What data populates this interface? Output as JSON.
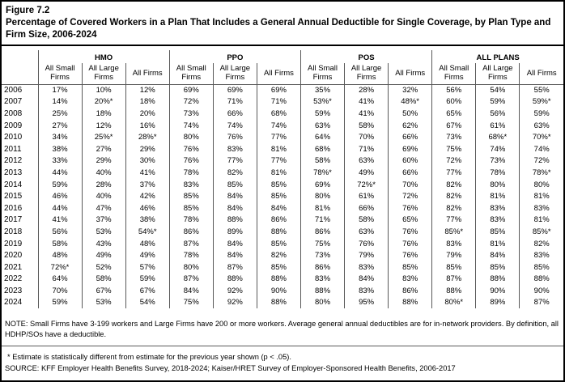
{
  "figure": {
    "label": "Figure 7.2",
    "title": "Percentage of Covered Workers in a Plan That Includes a General Annual Deductible for Single Coverage, by Plan Type and Firm Size, 2006-2024"
  },
  "table": {
    "groups": [
      "HMO",
      "PPO",
      "POS",
      "ALL PLANS"
    ],
    "sub_headers": [
      "All Small Firms",
      "All Large Firms",
      "All Firms"
    ],
    "rows": [
      {
        "year": "2006",
        "values": [
          "17%",
          "10%",
          "12%",
          "69%",
          "69%",
          "69%",
          "35%",
          "28%",
          "32%",
          "56%",
          "54%",
          "55%"
        ]
      },
      {
        "year": "2007",
        "values": [
          "14%",
          "20%*",
          "18%",
          "72%",
          "71%",
          "71%",
          "53%*",
          "41%",
          "48%*",
          "60%",
          "59%",
          "59%*"
        ]
      },
      {
        "year": "2008",
        "values": [
          "25%",
          "18%",
          "20%",
          "73%",
          "66%",
          "68%",
          "59%",
          "41%",
          "50%",
          "65%",
          "56%",
          "59%"
        ]
      },
      {
        "year": "2009",
        "values": [
          "27%",
          "12%",
          "16%",
          "74%",
          "74%",
          "74%",
          "63%",
          "58%",
          "62%",
          "67%",
          "61%",
          "63%"
        ]
      },
      {
        "year": "2010",
        "values": [
          "34%",
          "25%*",
          "28%*",
          "80%",
          "76%",
          "77%",
          "64%",
          "70%",
          "66%",
          "73%",
          "68%*",
          "70%*"
        ]
      },
      {
        "year": "2011",
        "values": [
          "38%",
          "27%",
          "29%",
          "76%",
          "83%",
          "81%",
          "68%",
          "71%",
          "69%",
          "75%",
          "74%",
          "74%"
        ]
      },
      {
        "year": "2012",
        "values": [
          "33%",
          "29%",
          "30%",
          "76%",
          "77%",
          "77%",
          "58%",
          "63%",
          "60%",
          "72%",
          "73%",
          "72%"
        ]
      },
      {
        "year": "2013",
        "values": [
          "44%",
          "40%",
          "41%",
          "78%",
          "82%",
          "81%",
          "78%*",
          "49%",
          "66%",
          "77%",
          "78%",
          "78%*"
        ]
      },
      {
        "year": "2014",
        "values": [
          "59%",
          "28%",
          "37%",
          "83%",
          "85%",
          "85%",
          "69%",
          "72%*",
          "70%",
          "82%",
          "80%",
          "80%"
        ]
      },
      {
        "year": "2015",
        "values": [
          "46%",
          "40%",
          "42%",
          "85%",
          "84%",
          "85%",
          "80%",
          "61%",
          "72%",
          "82%",
          "81%",
          "81%"
        ]
      },
      {
        "year": "2016",
        "values": [
          "44%",
          "47%",
          "46%",
          "85%",
          "84%",
          "84%",
          "81%",
          "66%",
          "76%",
          "82%",
          "83%",
          "83%"
        ]
      },
      {
        "year": "2017",
        "values": [
          "41%",
          "37%",
          "38%",
          "78%",
          "88%",
          "86%",
          "71%",
          "58%",
          "65%",
          "77%",
          "83%",
          "81%"
        ]
      },
      {
        "year": "2018",
        "values": [
          "56%",
          "53%",
          "54%*",
          "86%",
          "89%",
          "88%",
          "86%",
          "63%",
          "76%",
          "85%*",
          "85%",
          "85%*"
        ]
      },
      {
        "year": "2019",
        "values": [
          "58%",
          "43%",
          "48%",
          "87%",
          "84%",
          "85%",
          "75%",
          "76%",
          "76%",
          "83%",
          "81%",
          "82%"
        ]
      },
      {
        "year": "2020",
        "values": [
          "48%",
          "49%",
          "49%",
          "78%",
          "84%",
          "82%",
          "73%",
          "79%",
          "76%",
          "79%",
          "84%",
          "83%"
        ]
      },
      {
        "year": "2021",
        "values": [
          "72%*",
          "52%",
          "57%",
          "80%",
          "87%",
          "85%",
          "86%",
          "83%",
          "85%",
          "85%",
          "85%",
          "85%"
        ]
      },
      {
        "year": "2022",
        "values": [
          "64%",
          "58%",
          "59%",
          "87%",
          "88%",
          "88%",
          "83%",
          "84%",
          "83%",
          "87%",
          "88%",
          "88%"
        ]
      },
      {
        "year": "2023",
        "values": [
          "70%",
          "67%",
          "67%",
          "84%",
          "92%",
          "90%",
          "88%",
          "83%",
          "86%",
          "88%",
          "90%",
          "90%"
        ]
      },
      {
        "year": "2024",
        "values": [
          "59%",
          "53%",
          "54%",
          "75%",
          "92%",
          "88%",
          "80%",
          "95%",
          "88%",
          "80%*",
          "89%",
          "87%"
        ]
      }
    ]
  },
  "note": "NOTE: Small Firms have 3-199 workers and Large Firms have 200 or more workers. Average general annual deductibles are for in-network providers. By definition, all HDHP/SOs have a deductible.",
  "footnote": "* Estimate is statistically different from estimate for the previous year shown (p < .05).",
  "source": "SOURCE: KFF Employer Health Benefits Survey, 2018-2024; Kaiser/HRET Survey of Employer-Sponsored Health Benefits, 2006-2017"
}
